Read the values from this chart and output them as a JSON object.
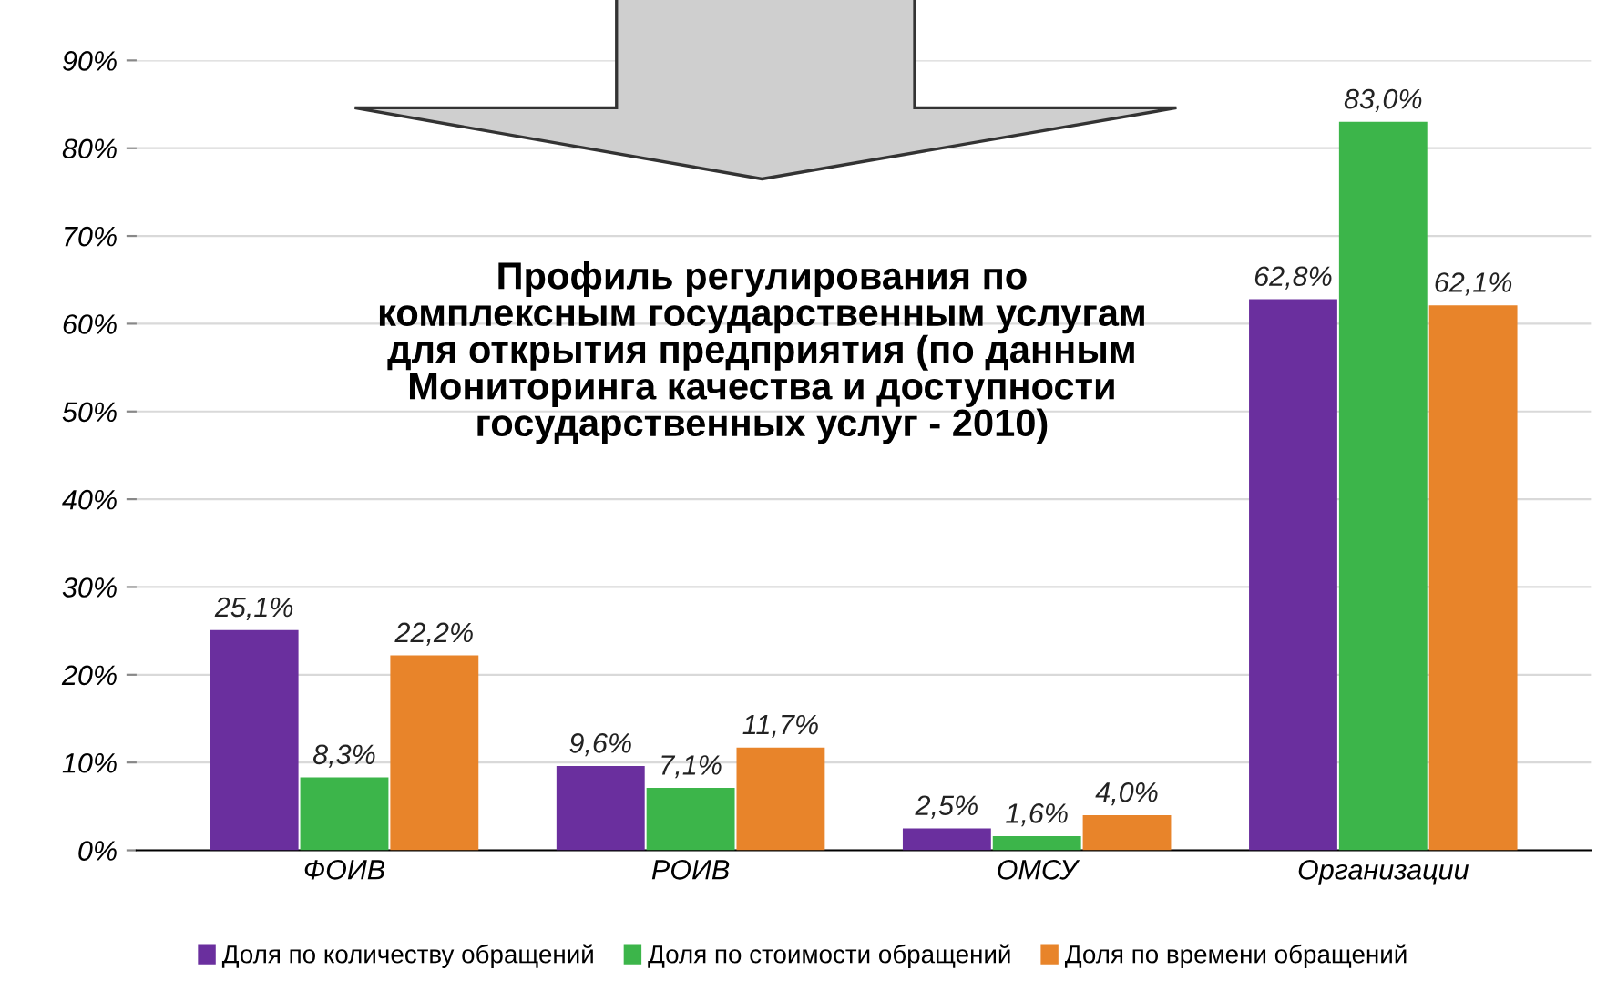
{
  "chart_data": {
    "type": "bar",
    "title": "Профиль регулирования по\nкомплексным государственным услугам\nдля открытия предприятия (по данным\nМониторинга качества и доступности\nгосударственных услуг - 2010)",
    "categories": [
      "ФОИВ",
      "РОИВ",
      "ОМСУ",
      "Организации"
    ],
    "series": [
      {
        "name": "Доля по количеству обращений",
        "color": "#6a2f9e",
        "values": [
          25.1,
          9.6,
          2.5,
          62.8
        ],
        "value_labels": [
          "25,1%",
          "9,6%",
          "2,5%",
          "62,8%"
        ]
      },
      {
        "name": "Доля по стоимости обращений",
        "color": "#3cb54a",
        "values": [
          8.3,
          7.1,
          1.6,
          83.0
        ],
        "value_labels": [
          "8,3%",
          "7,1%",
          "1,6%",
          "83,0%"
        ]
      },
      {
        "name": "Доля по времени обращений",
        "color": "#e8842a",
        "values": [
          22.2,
          11.7,
          4.0,
          62.1
        ],
        "value_labels": [
          "22,2%",
          "11,7%",
          "4,0%",
          "62,1%"
        ]
      }
    ],
    "ylim": [
      0,
      90
    ],
    "yticks": [
      {
        "value": 0,
        "label": "0%"
      },
      {
        "value": 10,
        "label": "10%"
      },
      {
        "value": 20,
        "label": "20%"
      },
      {
        "value": 30,
        "label": "30%"
      },
      {
        "value": 40,
        "label": "40%"
      },
      {
        "value": 50,
        "label": "50%"
      },
      {
        "value": 60,
        "label": "60%"
      },
      {
        "value": 70,
        "label": "70%"
      },
      {
        "value": 80,
        "label": "80%"
      },
      {
        "value": 90,
        "label": "90%"
      }
    ],
    "grid": "y",
    "legend": "bottom"
  }
}
